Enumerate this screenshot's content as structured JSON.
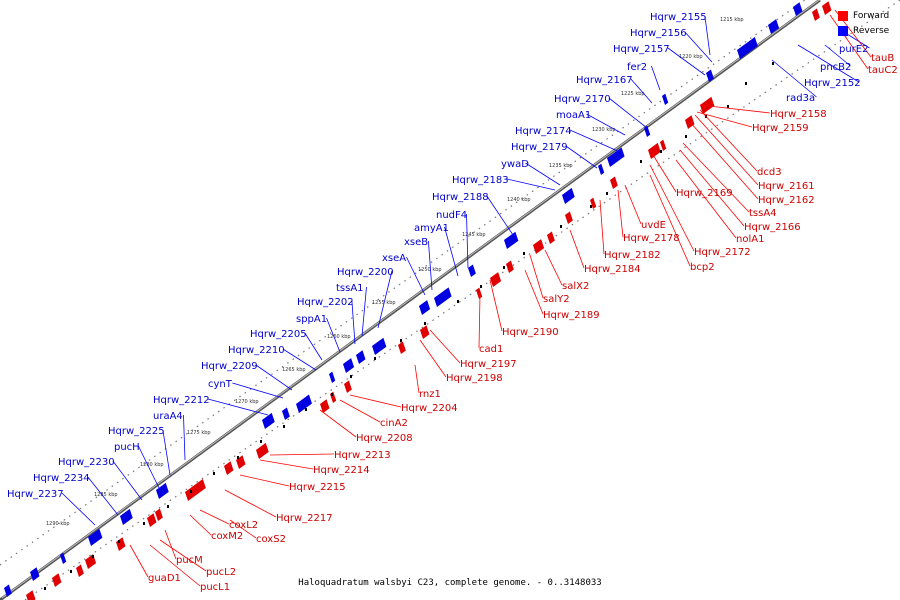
{
  "legend": {
    "forward": {
      "label": "Forward",
      "color": "#ff0000"
    },
    "reverse": {
      "label": "Reverse",
      "color": "#0000ff"
    }
  },
  "caption": "Haloquadratum walsbyi C23, complete genome. - 0..3148033",
  "ticks": [
    "1215 kbp",
    "1220 kbp",
    "1225 kbp",
    "1230 kbp",
    "1235 kbp",
    "1240 kbp",
    "1245 kbp",
    "1250 kbp",
    "1255 kbp",
    "1260 kbp",
    "1265 kbp",
    "1270 kbp",
    "1275 kbp",
    "1280 kbp",
    "1285 kbp",
    "1290 kbp"
  ],
  "reverse_genes": [
    "Hqrw_2155",
    "Hqrw_2156",
    "Hqrw_2157",
    "fer2",
    "Hqrw_2167",
    "Hqrw_2170",
    "moaA1",
    "Hqrw_2174",
    "Hqrw_2179",
    "ywaD",
    "Hqrw_2183",
    "Hqrw_2188",
    "nudF4",
    "amyA1",
    "xseB",
    "xseA",
    "Hqrw_2200",
    "tssA1",
    "Hqrw_2202",
    "sppA1",
    "Hqrw_2205",
    "Hqrw_2210",
    "Hqrw_2209",
    "cynT",
    "Hqrw_2212",
    "uraA4",
    "Hqrw_2225",
    "pucH",
    "Hqrw_2230",
    "Hqrw_2234",
    "Hqrw_2237",
    "purE2",
    "pncB2",
    "Hqrw_2152",
    "rad3a"
  ],
  "forward_genes": [
    "tauB",
    "tauC2",
    "Hqrw_2158",
    "Hqrw_2159",
    "dcd3",
    "Hqrw_2161",
    "Hqrw_2162",
    "Hqrw_2169",
    "tssA4",
    "Hqrw_2166",
    "nolA1",
    "uvdE",
    "Hqrw_2178",
    "Hqrw_2172",
    "Hqrw_2182",
    "bcp2",
    "salX2",
    "Hqrw_2184",
    "Hqrw_2189",
    "salY2",
    "Hqrw_2190",
    "cad1",
    "Hqrw_2197",
    "Hqrw_2198",
    "rnz1",
    "Hqrw_2204",
    "cinA2",
    "Hqrw_2208",
    "Hqrw_2213",
    "Hqrw_2214",
    "Hqrw_2215",
    "Hqrw_2217",
    "coxL2",
    "coxM2",
    "coxS2",
    "pucM",
    "pucL2",
    "pucL1",
    "guaD1"
  ]
}
